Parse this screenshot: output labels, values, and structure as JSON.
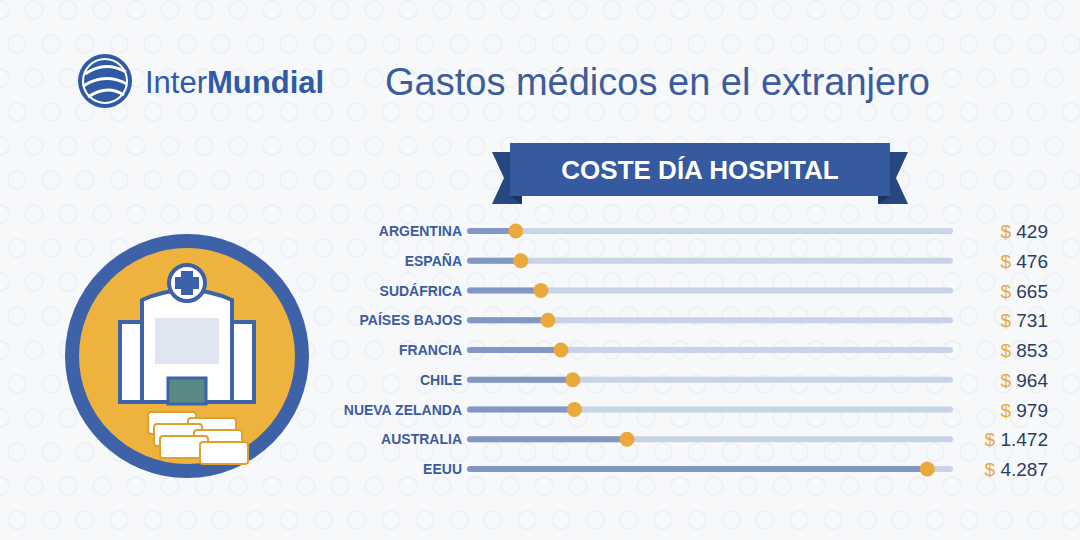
{
  "chart_data": {
    "type": "bar",
    "orientation": "horizontal",
    "brand": [
      "Inter",
      "Mundial"
    ],
    "title": "Gastos médicos en el extranjero",
    "subtitle": "COSTE DÍA HOSPITAL",
    "categories": [
      "ARGENTINA",
      "ESPAÑA",
      "SUDÁFRICA",
      "PAÍSES BAJOS",
      "FRANCIA",
      "CHILE",
      "NUEVA ZELANDA",
      "AUSTRALIA",
      "EEUU"
    ],
    "values": [
      429,
      476,
      665,
      731,
      853,
      964,
      979,
      1472,
      4287
    ],
    "value_labels": [
      "$ 429",
      "$ 476",
      "$ 665",
      "$ 731",
      "$ 853",
      "$ 964",
      "$ 979",
      "$ 1.472",
      "$ 4.287"
    ],
    "color": "#e9a93b",
    "xlim": [
      0,
      4500
    ],
    "xticks": [],
    "tick_labels": false,
    "data_labels": true,
    "grid": false
  }
}
